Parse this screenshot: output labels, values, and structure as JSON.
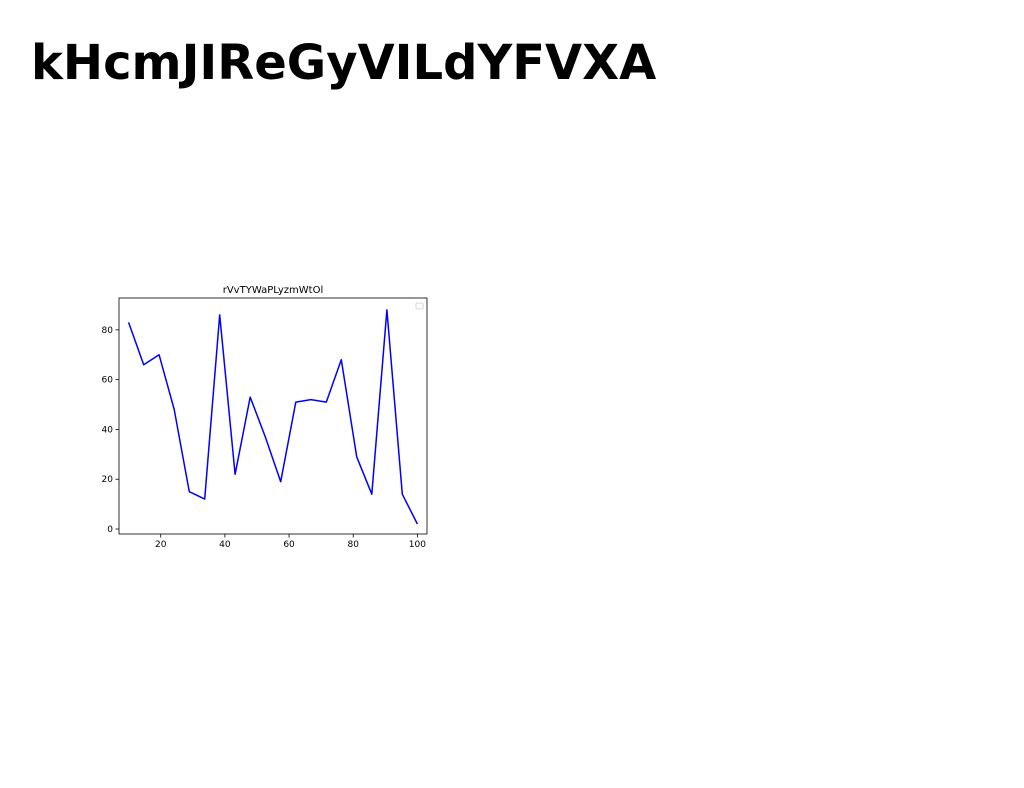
{
  "page": {
    "title": "kHcmJIReGyVILdYFVXA"
  },
  "chart_data": {
    "type": "line",
    "title": "rVvTYWaPLyzmWtOl",
    "xlabel": "",
    "ylabel": "",
    "xlim": [
      7,
      103
    ],
    "ylim": [
      -2,
      92.8
    ],
    "xticks": [
      20,
      40,
      60,
      80,
      100
    ],
    "yticks": [
      0,
      20,
      40,
      60,
      80
    ],
    "grid": false,
    "legend": "top-right",
    "series": [
      {
        "color": "#0000ff",
        "x": [
          10,
          14.7,
          19.5,
          24.2,
          28.9,
          33.7,
          38.4,
          43.2,
          47.9,
          52.6,
          57.4,
          62.1,
          66.8,
          71.6,
          76.3,
          81.1,
          85.8,
          90.5,
          95.3,
          100
        ],
        "y": [
          83,
          66,
          70,
          48,
          15,
          12,
          86,
          22,
          53,
          37,
          19,
          51,
          52,
          51,
          68,
          29,
          14,
          88,
          14,
          2
        ]
      }
    ]
  }
}
